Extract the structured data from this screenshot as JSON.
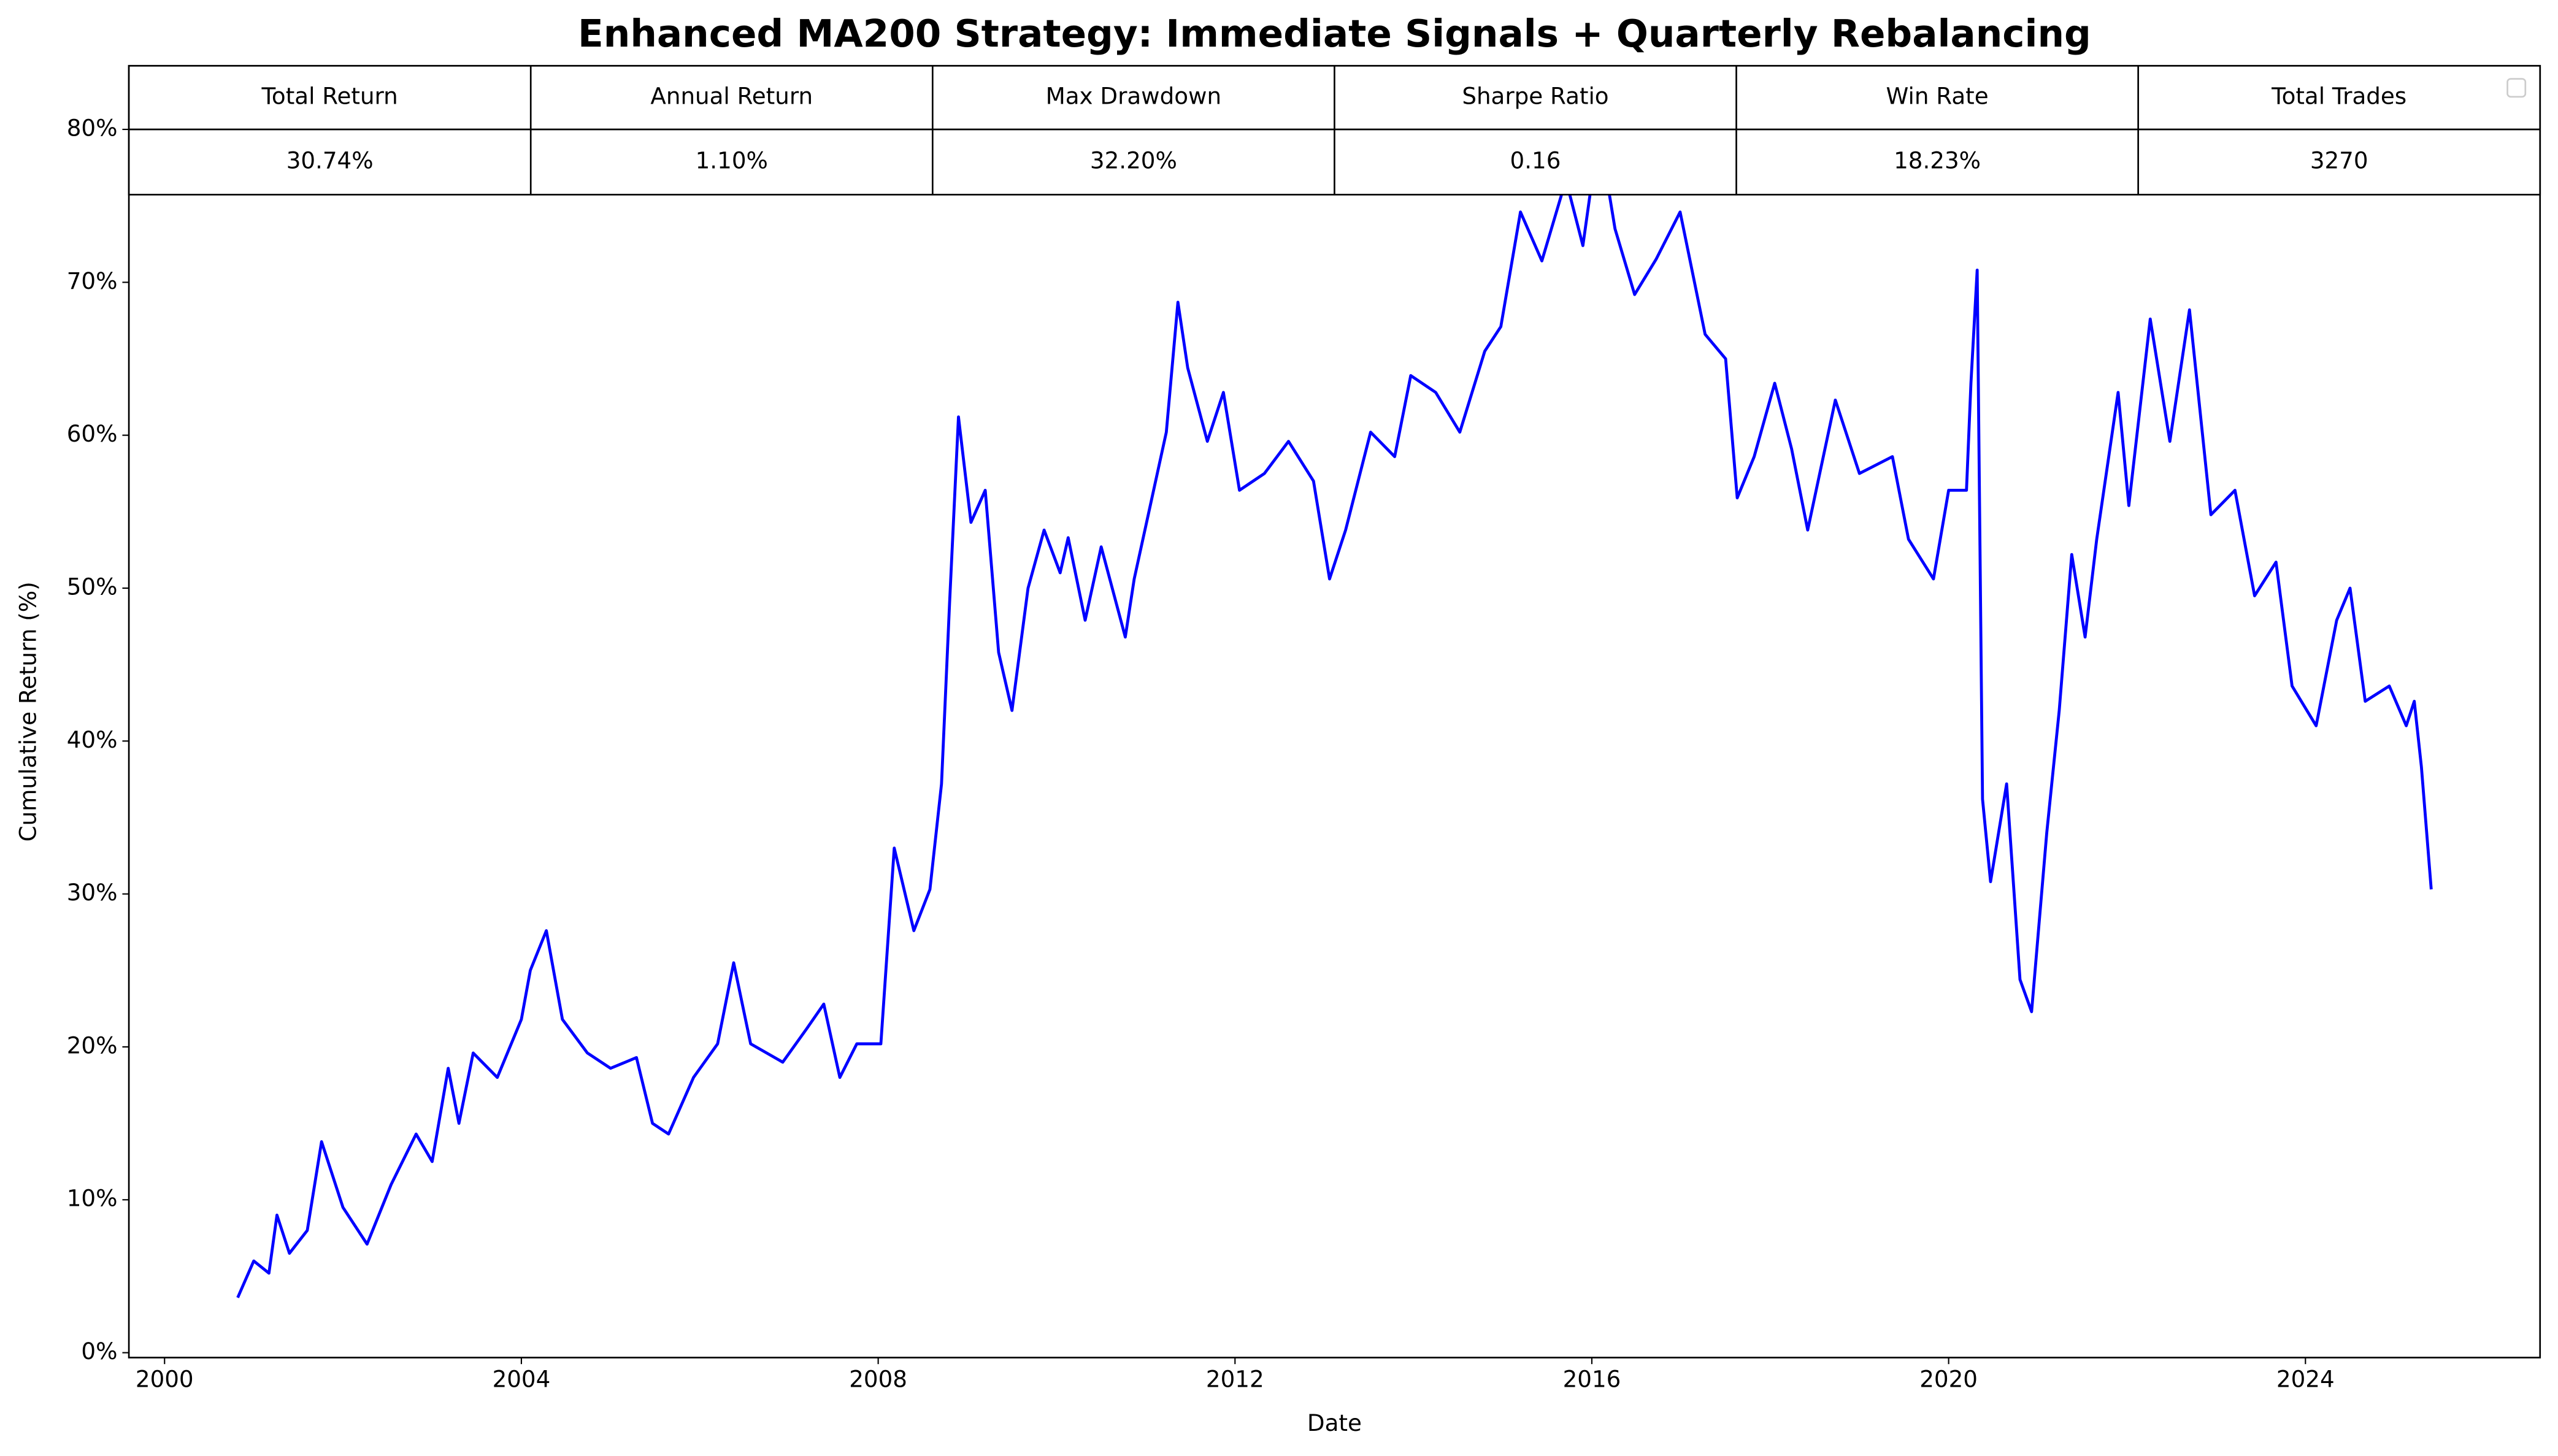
{
  "chart_data": {
    "type": "line",
    "title": "Enhanced MA200 Strategy: Immediate Signals + Quarterly Rebalancing",
    "xlabel": "Date",
    "ylabel": "Cumulative Return (%)",
    "color": "#0000ff",
    "x": [
      2000.82,
      2001.0,
      2001.17,
      2001.26,
      2001.4,
      2001.6,
      2001.76,
      2002.0,
      2002.27,
      2002.54,
      2002.82,
      2003.0,
      2003.18,
      2003.3,
      2003.46,
      2003.73,
      2004.0,
      2004.1,
      2004.28,
      2004.46,
      2004.74,
      2005.0,
      2005.29,
      2005.47,
      2005.65,
      2005.93,
      2006.2,
      2006.38,
      2006.57,
      2006.93,
      2007.2,
      2007.39,
      2007.57,
      2007.76,
      2008.03,
      2008.18,
      2008.4,
      2008.58,
      2008.71,
      2008.8,
      2008.9,
      2009.04,
      2009.2,
      2009.35,
      2009.5,
      2009.68,
      2009.86,
      2010.04,
      2010.13,
      2010.32,
      2010.5,
      2010.77,
      2010.87,
      2011.05,
      2011.23,
      2011.36,
      2011.47,
      2011.69,
      2011.87,
      2012.05,
      2012.33,
      2012.6,
      2012.88,
      2013.06,
      2013.24,
      2013.52,
      2013.79,
      2013.97,
      2014.25,
      2014.52,
      2014.8,
      2014.98,
      2015.2,
      2015.44,
      2015.71,
      2015.9,
      2016.08,
      2016.26,
      2016.48,
      2016.72,
      2016.99,
      2017.27,
      2017.5,
      2017.63,
      2017.82,
      2018.05,
      2018.24,
      2018.42,
      2018.73,
      2019.0,
      2019.37,
      2019.55,
      2019.83,
      2020.0,
      2020.2,
      2020.25,
      2020.32,
      2020.38,
      2020.47,
      2020.65,
      2020.8,
      2020.93,
      2021.1,
      2021.24,
      2021.38,
      2021.53,
      2021.66,
      2021.9,
      2022.02,
      2022.26,
      2022.48,
      2022.7,
      2022.94,
      2023.21,
      2023.43,
      2023.67,
      2023.85,
      2024.12,
      2024.35,
      2024.5,
      2024.67,
      2024.94,
      2025.13,
      2025.22,
      2025.3,
      2025.41
    ],
    "values": [
      3.6,
      6,
      5.2,
      9,
      6.5,
      8,
      13.8,
      9.5,
      7.1,
      11,
      14.3,
      12.5,
      18.6,
      15,
      19.6,
      18,
      21.8,
      25,
      27.6,
      21.8,
      19.6,
      18.6,
      19.3,
      15,
      14.3,
      18,
      20.2,
      25.5,
      20.2,
      19,
      21.2,
      22.8,
      18,
      20.2,
      20.2,
      33,
      27.6,
      30.3,
      37.2,
      49,
      61.2,
      54.3,
      56.4,
      45.8,
      42,
      50,
      53.8,
      51,
      53.3,
      47.9,
      52.7,
      46.8,
      50.6,
      55.4,
      60.2,
      68.7,
      64.4,
      59.6,
      62.8,
      56.4,
      57.5,
      59.6,
      57,
      50.6,
      53.8,
      60.2,
      58.6,
      63.9,
      62.8,
      60.2,
      65.5,
      67.1,
      74.6,
      71.4,
      76.7,
      72.4,
      79.9,
      73.5,
      69.2,
      71.5,
      74.6,
      66.6,
      65,
      55.9,
      58.6,
      63.4,
      59.1,
      53.8,
      62.3,
      57.5,
      58.6,
      53.2,
      50.6,
      56.4,
      56.4,
      63.4,
      70.8,
      36.2,
      30.8,
      37.2,
      24.4,
      22.3,
      34,
      42,
      52.2,
      46.8,
      53.2,
      62.8,
      55.4,
      67.6,
      59.6,
      68.2,
      54.8,
      56.4,
      49.5,
      51.7,
      43.6,
      41,
      47.9,
      50,
      42.6,
      43.6,
      41,
      42.6,
      38.3,
      30.3
    ],
    "xlim": [
      1999.6,
      2026.63
    ],
    "xticks": [
      2000,
      2004,
      2008,
      2012,
      2016,
      2020,
      2024
    ],
    "ylim": [
      -0.32,
      84.16
    ],
    "yticks": [
      {
        "value": 0,
        "label": "0%"
      },
      {
        "value": 10,
        "label": "10%"
      },
      {
        "value": 20,
        "label": "20%"
      },
      {
        "value": 30,
        "label": "30%"
      },
      {
        "value": 40,
        "label": "40%"
      },
      {
        "value": 50,
        "label": "50%"
      },
      {
        "value": 60,
        "label": "60%"
      },
      {
        "value": 70,
        "label": "70%"
      },
      {
        "value": 80,
        "label": "80%"
      }
    ],
    "grid": false,
    "table": {
      "columns": [
        "Total Return",
        "Annual Return",
        "Max Drawdown",
        "Sharpe Ratio",
        "Win Rate",
        "Total Trades"
      ],
      "cells": [
        "30.74%",
        "1.10%",
        "32.20%",
        "0.16",
        "18.23%",
        "3270"
      ]
    }
  }
}
